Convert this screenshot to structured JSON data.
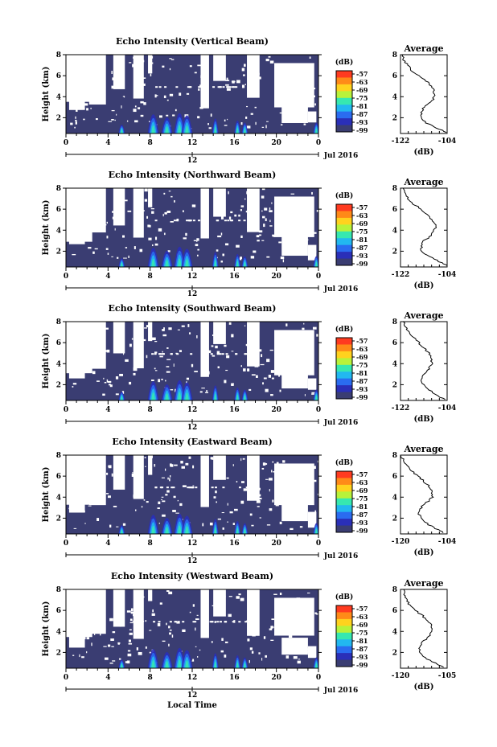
{
  "figure": {
    "x_axis_label": "Local Time",
    "date_label": "Jul 2016",
    "date_tick_label": "12",
    "x_ticks": [
      "0",
      "4",
      "8",
      "12",
      "16",
      "20",
      "0"
    ],
    "y_ticks": [
      "2",
      "4",
      "6",
      "8"
    ],
    "colorbar": {
      "unit_label": "(dB)",
      "tick_labels": [
        "-57",
        "-63",
        "-69",
        "-75",
        "-81",
        "-87",
        "-93",
        "-99"
      ],
      "colors": [
        "#ff3b20",
        "#ff8a18",
        "#ffd21e",
        "#b8f23a",
        "#36e8b0",
        "#22b8f0",
        "#2a6cf0",
        "#2a2fb8",
        "#3a3d72"
      ]
    },
    "background_fill_color": "#3a3d72",
    "missing_data_color": "#ffffff"
  },
  "chart_data": [
    {
      "type": "heatmap",
      "title": "Echo Intensity (Vertical Beam)",
      "ylabel": "Height (km)",
      "xlim": [
        0,
        24
      ],
      "ylim": [
        0.5,
        8
      ],
      "colorbar_range_dB": [
        -99,
        -57
      ],
      "profile": {
        "title": "Average",
        "xlabel": "(dB)",
        "xtick_labels": [
          "-122",
          "-104"
        ],
        "xlim": [
          -122,
          -104
        ],
        "ylim": [
          0.5,
          8
        ],
        "heights": [
          0.6,
          1.0,
          1.5,
          2.0,
          2.5,
          3.0,
          3.5,
          4.0,
          4.5,
          5.0,
          5.5,
          6.0,
          6.5,
          7.0,
          7.5,
          8.0
        ],
        "values": [
          -104,
          -108,
          -112,
          -114,
          -114,
          -113,
          -110,
          -109,
          -109,
          -110,
          -112,
          -115,
          -118,
          -119,
          -121,
          -121
        ]
      }
    },
    {
      "type": "heatmap",
      "title": "Echo Intensity (Northward Beam)",
      "ylabel": "Height (km)",
      "xlim": [
        0,
        24
      ],
      "ylim": [
        0.5,
        8
      ],
      "colorbar_range_dB": [
        -99,
        -57
      ],
      "profile": {
        "title": "Average",
        "xlabel": "(dB)",
        "xtick_labels": [
          "-122",
          "-104"
        ],
        "xlim": [
          -122,
          -104
        ],
        "ylim": [
          0.5,
          8
        ],
        "heights": [
          0.6,
          1.0,
          1.5,
          2.0,
          2.5,
          3.0,
          3.5,
          4.0,
          4.5,
          5.0,
          5.5,
          6.0,
          6.5,
          7.0,
          7.5,
          8.0
        ],
        "values": [
          -104,
          -107,
          -111,
          -114,
          -114,
          -113,
          -110,
          -109,
          -108,
          -110,
          -112,
          -114,
          -117,
          -119,
          -120,
          -121
        ]
      }
    },
    {
      "type": "heatmap",
      "title": "Echo Intensity (Southward Beam)",
      "ylabel": "Height (km)",
      "xlim": [
        0,
        24
      ],
      "ylim": [
        0.5,
        8
      ],
      "colorbar_range_dB": [
        -99,
        -57
      ],
      "profile": {
        "title": "Average",
        "xlabel": "(dB)",
        "xtick_labels": [
          "-122",
          "-104"
        ],
        "xlim": [
          -122,
          -104
        ],
        "ylim": [
          0.5,
          8
        ],
        "heights": [
          0.6,
          1.0,
          1.5,
          2.0,
          2.5,
          3.0,
          3.5,
          4.0,
          4.5,
          5.0,
          5.5,
          6.0,
          6.5,
          7.0,
          7.5,
          8.0
        ],
        "values": [
          -105,
          -108,
          -111,
          -113,
          -114,
          -113,
          -111,
          -110,
          -110,
          -111,
          -113,
          -115,
          -117,
          -119,
          -120,
          -121
        ]
      }
    },
    {
      "type": "heatmap",
      "title": "Echo Intensity (Eastward Beam)",
      "ylabel": "Height (km)",
      "xlim": [
        0,
        24
      ],
      "ylim": [
        0.5,
        8
      ],
      "colorbar_range_dB": [
        -99,
        -57
      ],
      "profile": {
        "title": "Average",
        "xlabel": "(dB)",
        "xtick_labels": [
          "-120",
          "-104"
        ],
        "xlim": [
          -120,
          -104
        ],
        "ylim": [
          0.5,
          8
        ],
        "heights": [
          0.6,
          1.0,
          1.5,
          2.0,
          2.5,
          3.0,
          3.5,
          4.0,
          4.5,
          5.0,
          5.5,
          6.0,
          6.5,
          7.0,
          7.5,
          8.0
        ],
        "values": [
          -105,
          -108,
          -111,
          -113,
          -114,
          -113,
          -111,
          -109,
          -109,
          -110,
          -112,
          -114,
          -116,
          -118,
          -119,
          -120
        ]
      }
    },
    {
      "type": "heatmap",
      "title": "Echo Intensity (Westward Beam)",
      "ylabel": "Height (km)",
      "xlim": [
        0,
        24
      ],
      "ylim": [
        0.5,
        8
      ],
      "colorbar_range_dB": [
        -99,
        -57
      ],
      "profile": {
        "title": "Average",
        "xlabel": "(dB)",
        "xtick_labels": [
          "-120",
          "-105"
        ],
        "xlim": [
          -120,
          -105
        ],
        "ylim": [
          0.5,
          8
        ],
        "heights": [
          0.6,
          1.0,
          1.5,
          2.0,
          2.5,
          3.0,
          3.5,
          4.0,
          4.5,
          5.0,
          5.5,
          6.0,
          6.5,
          7.0,
          7.5,
          8.0
        ],
        "values": [
          -106,
          -109,
          -112,
          -114,
          -114,
          -113,
          -111,
          -110,
          -110,
          -111,
          -113,
          -115,
          -117,
          -118,
          -119,
          -119
        ]
      }
    }
  ]
}
